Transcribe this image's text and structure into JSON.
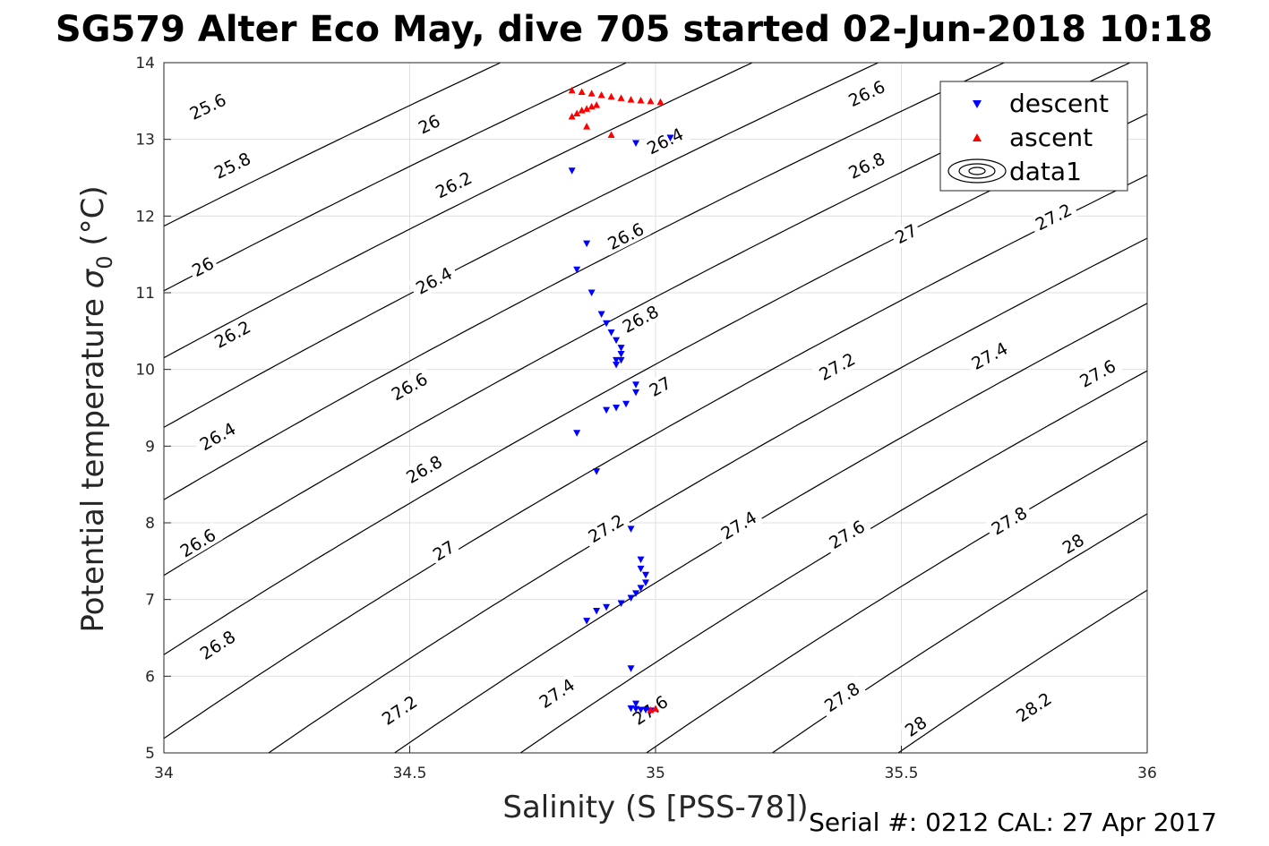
{
  "chart_data": {
    "type": "scatter",
    "title": "SG579 Alter Eco May, dive 705 started 02-Jun-2018 10:18",
    "xlabel": "Salinity (S [PSS-78])",
    "ylabel": "Potential temperature",
    "ylabel_sigma": "σ",
    "ylabel_sub": "0",
    "ylabel_unit": "(°C)",
    "xlim": [
      34,
      36
    ],
    "ylim": [
      5,
      14
    ],
    "xticks": [
      34,
      34.5,
      35,
      35.5,
      36
    ],
    "xtick_labels": [
      "34",
      "34.5",
      "35",
      "35.5",
      "36"
    ],
    "yticks": [
      5,
      6,
      7,
      8,
      9,
      10,
      11,
      12,
      13,
      14
    ],
    "ytick_labels": [
      "5",
      "6",
      "7",
      "8",
      "9",
      "10",
      "11",
      "12",
      "13",
      "14"
    ],
    "grid": true,
    "legend_position": "top-right",
    "legend": [
      "descent",
      "ascent",
      "data1"
    ],
    "contour_levels": [
      25.6,
      25.8,
      26,
      26.2,
      26.4,
      26.6,
      26.8,
      27,
      27.2,
      27.4,
      27.6,
      27.8,
      28,
      28.2
    ],
    "contour_labels": [
      {
        "text": "25.6",
        "s": 34.09,
        "t": 13.42
      },
      {
        "text": "26",
        "s": 34.54,
        "t": 13.19
      },
      {
        "text": "26.4",
        "s": 35.02,
        "t": 12.97
      },
      {
        "text": "26.6",
        "s": 35.43,
        "t": 13.59
      },
      {
        "text": "25.8",
        "s": 34.14,
        "t": 12.65
      },
      {
        "text": "26.2",
        "s": 34.59,
        "t": 12.4
      },
      {
        "text": "26.8",
        "s": 35.43,
        "t": 12.65
      },
      {
        "text": "26",
        "s": 34.08,
        "t": 11.33
      },
      {
        "text": "26.6",
        "s": 34.94,
        "t": 11.73
      },
      {
        "text": "27",
        "s": 35.51,
        "t": 11.76
      },
      {
        "text": "27.2",
        "s": 35.81,
        "t": 11.98
      },
      {
        "text": "26.4",
        "s": 34.55,
        "t": 11.15
      },
      {
        "text": "26.8",
        "s": 34.97,
        "t": 10.65
      },
      {
        "text": "26.2",
        "s": 34.14,
        "t": 10.45
      },
      {
        "text": "26.6",
        "s": 34.5,
        "t": 9.77
      },
      {
        "text": "27",
        "s": 35.01,
        "t": 9.77
      },
      {
        "text": "27.2",
        "s": 35.37,
        "t": 10.03
      },
      {
        "text": "27.4",
        "s": 35.68,
        "t": 10.17
      },
      {
        "text": "27.6",
        "s": 35.9,
        "t": 9.94
      },
      {
        "text": "26.4",
        "s": 34.11,
        "t": 9.12
      },
      {
        "text": "26.8",
        "s": 34.53,
        "t": 8.69
      },
      {
        "text": "26.6",
        "s": 34.07,
        "t": 7.73
      },
      {
        "text": "27",
        "s": 34.57,
        "t": 7.63
      },
      {
        "text": "27.2",
        "s": 34.9,
        "t": 7.92
      },
      {
        "text": "27.4",
        "s": 35.17,
        "t": 7.96
      },
      {
        "text": "27.6",
        "s": 35.39,
        "t": 7.84
      },
      {
        "text": "27.8",
        "s": 35.72,
        "t": 8.02
      },
      {
        "text": "28",
        "s": 35.85,
        "t": 7.72
      },
      {
        "text": "26.8",
        "s": 34.11,
        "t": 6.4
      },
      {
        "text": "27.2",
        "s": 34.48,
        "t": 5.55
      },
      {
        "text": "27.4",
        "s": 34.8,
        "t": 5.77
      },
      {
        "text": "27.6",
        "s": 34.99,
        "t": 5.55
      },
      {
        "text": "27.8",
        "s": 35.38,
        "t": 5.72
      },
      {
        "text": "28",
        "s": 35.53,
        "t": 5.34
      },
      {
        "text": "28.2",
        "s": 35.77,
        "t": 5.59
      }
    ],
    "series": [
      {
        "name": "descent",
        "marker": "triangle-down",
        "color": "#0000ff",
        "x": [
          35.03,
          34.96,
          34.83,
          34.86,
          34.84,
          34.87,
          34.89,
          34.9,
          34.91,
          34.92,
          34.93,
          34.93,
          34.93,
          34.92,
          34.92,
          34.96,
          34.96,
          34.94,
          34.92,
          34.9,
          34.84,
          34.88,
          34.95,
          34.97,
          34.97,
          34.98,
          34.98,
          34.97,
          34.96,
          34.95,
          34.93,
          34.9,
          34.88,
          34.86,
          34.95,
          34.96,
          34.95,
          34.96,
          34.97,
          34.98,
          34.99
        ],
        "y": [
          13.02,
          12.95,
          12.59,
          11.64,
          11.3,
          11.0,
          10.72,
          10.6,
          10.48,
          10.38,
          10.28,
          10.2,
          10.12,
          10.06,
          10.12,
          9.8,
          9.7,
          9.55,
          9.5,
          9.47,
          9.17,
          8.67,
          7.92,
          7.52,
          7.4,
          7.32,
          7.22,
          7.15,
          7.08,
          7.02,
          6.95,
          6.9,
          6.85,
          6.72,
          6.1,
          5.64,
          5.58,
          5.57,
          5.56,
          5.56,
          5.55
        ]
      },
      {
        "name": "ascent",
        "marker": "triangle-up",
        "color": "#ff0000",
        "x": [
          34.83,
          34.85,
          34.87,
          34.89,
          34.91,
          34.93,
          34.95,
          34.97,
          34.99,
          35.01,
          34.84,
          34.85,
          34.86,
          34.87,
          34.88,
          34.83,
          34.86,
          34.91,
          34.99,
          35.0
        ],
        "y": [
          13.64,
          13.62,
          13.6,
          13.58,
          13.56,
          13.54,
          13.52,
          13.51,
          13.5,
          13.49,
          13.34,
          13.38,
          13.4,
          13.43,
          13.45,
          13.3,
          13.17,
          13.06,
          5.56,
          5.58
        ]
      }
    ]
  },
  "footer": {
    "serial_cal": "Serial #: 0212  CAL: 27 Apr 2017"
  }
}
